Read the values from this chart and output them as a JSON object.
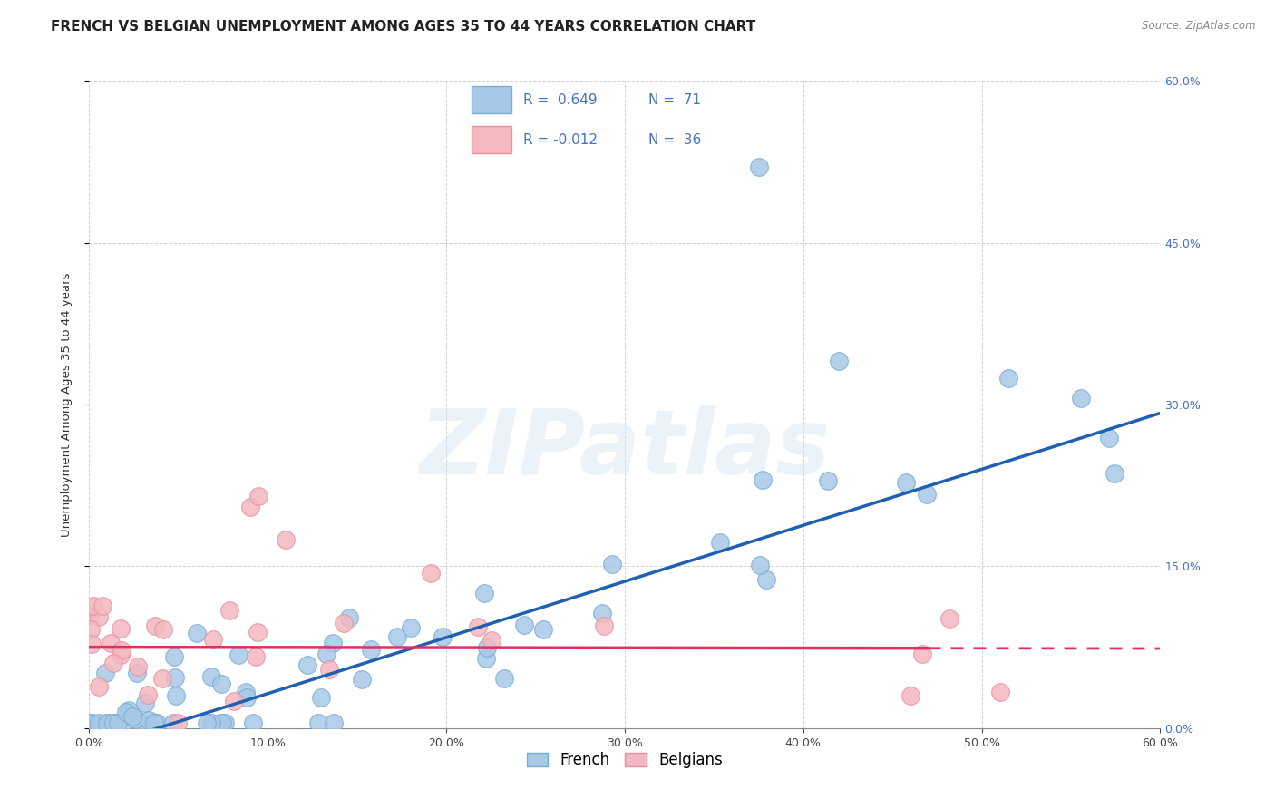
{
  "title": "FRENCH VS BELGIAN UNEMPLOYMENT AMONG AGES 35 TO 44 YEARS CORRELATION CHART",
  "source": "Source: ZipAtlas.com",
  "ylabel": "Unemployment Among Ages 35 to 44 years",
  "xlim": [
    0.0,
    0.6
  ],
  "ylim": [
    0.0,
    0.6
  ],
  "xtick_vals": [
    0.0,
    0.1,
    0.2,
    0.3,
    0.4,
    0.5,
    0.6
  ],
  "ytick_vals": [
    0.0,
    0.15,
    0.3,
    0.45,
    0.6
  ],
  "french_R": 0.649,
  "french_N": 71,
  "belgian_R": -0.012,
  "belgian_N": 36,
  "french_color": "#a8c8e8",
  "french_edge_color": "#7aaed0",
  "belgian_color": "#f4b8c0",
  "belgian_edge_color": "#e890a0",
  "french_line_color": "#2060b0",
  "belgian_line_color": "#e03060",
  "watermark": "ZIPatlas",
  "background_color": "#ffffff",
  "grid_color": "#cccccc",
  "right_tick_color": "#4472c4",
  "title_fontsize": 11,
  "label_fontsize": 9.5,
  "tick_fontsize": 9,
  "legend_fontsize": 11,
  "french_line_intercept": -0.02,
  "french_line_slope": 0.52,
  "belgian_line_intercept": 0.075,
  "belgian_line_slope": -0.002
}
